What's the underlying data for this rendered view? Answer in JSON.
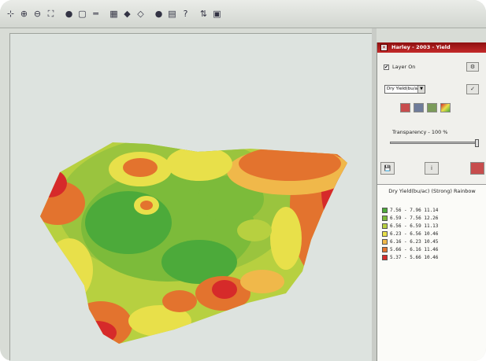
{
  "toolbar": {
    "icons": [
      "pointer-icon",
      "zoom-in-icon",
      "zoom-out-icon",
      "zoom-extent-icon",
      "globe-icon",
      "rectangle-select-icon",
      "line-tool-icon",
      "table-icon",
      "layer-add-icon",
      "layer-edit-icon",
      "record-icon",
      "grid-icon",
      "help-icon",
      "sort-icon",
      "calendar-icon"
    ],
    "glyphs": [
      "⊹",
      "⊕",
      "⊖",
      "⛶",
      "●",
      "▢",
      "═",
      "▦",
      "◆",
      "◇",
      "●",
      "▤",
      "?",
      "⇅",
      "▣"
    ]
  },
  "panel": {
    "title": "Harley - 2003 - Yield",
    "layer_label": "Layer On",
    "layer_checked": "✔",
    "select_value": "Dry Yield(bu/ac)",
    "transparency_label": "Transparency - 100 %",
    "transparency_value": 100
  },
  "legend": {
    "title": "Dry Yield(bu/ac) (Strong) Rainbow",
    "items": [
      {
        "label": "7.56 - 7.96   11.14",
        "color": "#4caa3a"
      },
      {
        "label": "6.59 - 7.56   12.26",
        "color": "#7cbb3a"
      },
      {
        "label": "6.56 - 6.59   11.13",
        "color": "#b7d040"
      },
      {
        "label": "6.23 - 6.56   10.46",
        "color": "#e8e04a"
      },
      {
        "label": "6.16 - 6.23   10.45",
        "color": "#f0b84a"
      },
      {
        "label": "5.66 - 6.16   11.46",
        "color": "#e3732e"
      },
      {
        "label": "5.37 - 5.66   10.46",
        "color": "#d62a2a"
      }
    ]
  }
}
